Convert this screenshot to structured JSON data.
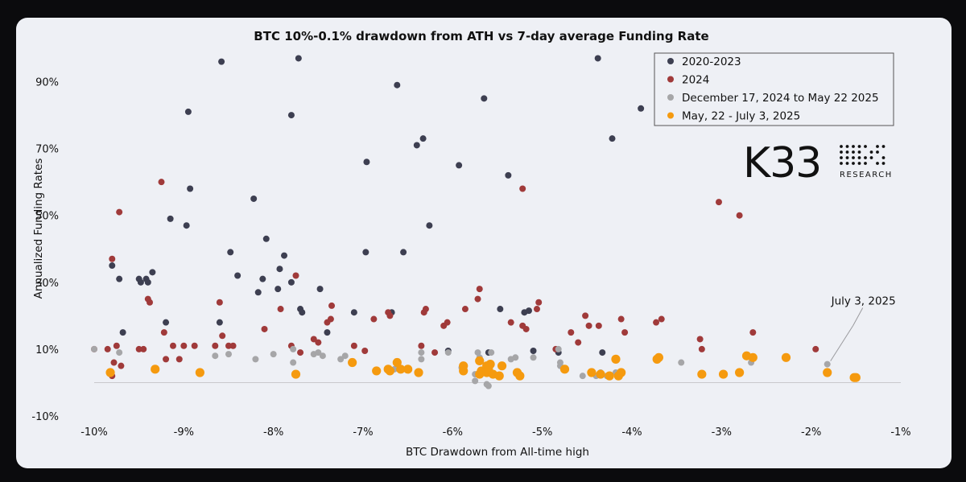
{
  "chart_data": {
    "type": "scatter",
    "title": "BTC 10%-0.1% drawdown from ATH vs 7-day average Funding Rate",
    "xlabel": "BTC Drawdown  from All-time high",
    "ylabel": "Annualized Funding Rates",
    "xlim": [
      -10,
      -1
    ],
    "ylim": [
      -10,
      100
    ],
    "xticks": [
      -10,
      -9,
      -8,
      -7,
      -6,
      -5,
      -4,
      -3,
      -2,
      -1
    ],
    "xtick_labels": [
      "-10%",
      "-9%",
      "-8%",
      "-7%",
      "-6%",
      "-5%",
      "-4%",
      "-3%",
      "-2%",
      "-1%"
    ],
    "yticks": [
      -10,
      10,
      30,
      50,
      70,
      90
    ],
    "ytick_labels": [
      "-10%",
      "10%",
      "30%",
      "50%",
      "70%",
      "90%"
    ],
    "zero_line": 0,
    "legend_position": "top-right",
    "series": [
      {
        "name": "2020-2023",
        "color": "#3d3f51",
        "points": [
          [
            -9.8,
            35
          ],
          [
            -9.72,
            31
          ],
          [
            -9.68,
            15
          ],
          [
            -9.5,
            31
          ],
          [
            -9.48,
            30
          ],
          [
            -9.42,
            31
          ],
          [
            -9.4,
            30
          ],
          [
            -9.35,
            33
          ],
          [
            -9.2,
            18
          ],
          [
            -9.15,
            49
          ],
          [
            -8.97,
            47
          ],
          [
            -8.95,
            81
          ],
          [
            -8.93,
            58
          ],
          [
            -8.6,
            18
          ],
          [
            -8.58,
            96
          ],
          [
            -8.48,
            39
          ],
          [
            -8.4,
            32
          ],
          [
            -8.22,
            55
          ],
          [
            -8.17,
            27
          ],
          [
            -8.12,
            31
          ],
          [
            -8.08,
            43
          ],
          [
            -7.95,
            28
          ],
          [
            -7.93,
            34
          ],
          [
            -7.88,
            38
          ],
          [
            -7.8,
            30
          ],
          [
            -7.8,
            80
          ],
          [
            -7.72,
            97
          ],
          [
            -7.7,
            22
          ],
          [
            -7.68,
            21
          ],
          [
            -7.48,
            28
          ],
          [
            -7.4,
            15
          ],
          [
            -7.1,
            21
          ],
          [
            -6.97,
            39
          ],
          [
            -6.96,
            66
          ],
          [
            -6.68,
            21
          ],
          [
            -6.62,
            89
          ],
          [
            -6.55,
            39
          ],
          [
            -6.4,
            71
          ],
          [
            -6.33,
            73
          ],
          [
            -6.26,
            47
          ],
          [
            -6.05,
            9.5
          ],
          [
            -5.93,
            65
          ],
          [
            -5.65,
            85
          ],
          [
            -5.6,
            9
          ],
          [
            -5.47,
            22
          ],
          [
            -5.38,
            62
          ],
          [
            -5.2,
            21
          ],
          [
            -5.15,
            21.5
          ],
          [
            -5.1,
            9.5
          ],
          [
            -4.82,
            9
          ],
          [
            -4.38,
            97
          ],
          [
            -4.33,
            9
          ],
          [
            -4.22,
            73
          ],
          [
            -3.9,
            82
          ]
        ]
      },
      {
        "name": "2024",
        "color": "#a03a3a",
        "points": [
          [
            -10,
            10
          ],
          [
            -9.85,
            10
          ],
          [
            -9.8,
            37
          ],
          [
            -9.8,
            2
          ],
          [
            -9.78,
            6
          ],
          [
            -9.75,
            11
          ],
          [
            -9.72,
            51
          ],
          [
            -9.7,
            5
          ],
          [
            -9.5,
            10
          ],
          [
            -9.45,
            10
          ],
          [
            -9.4,
            25
          ],
          [
            -9.38,
            24
          ],
          [
            -9.25,
            60
          ],
          [
            -9.22,
            15
          ],
          [
            -9.2,
            7
          ],
          [
            -9.12,
            11
          ],
          [
            -9.05,
            7
          ],
          [
            -9.0,
            11
          ],
          [
            -8.88,
            11
          ],
          [
            -8.65,
            11
          ],
          [
            -8.6,
            24
          ],
          [
            -8.57,
            14
          ],
          [
            -8.5,
            11
          ],
          [
            -8.45,
            11
          ],
          [
            -8.1,
            16
          ],
          [
            -7.92,
            22
          ],
          [
            -7.8,
            11
          ],
          [
            -7.75,
            32
          ],
          [
            -7.7,
            9
          ],
          [
            -7.55,
            13
          ],
          [
            -7.5,
            12
          ],
          [
            -7.4,
            18
          ],
          [
            -7.36,
            19
          ],
          [
            -7.35,
            23
          ],
          [
            -7.1,
            11
          ],
          [
            -6.98,
            9.5
          ],
          [
            -6.88,
            19
          ],
          [
            -6.72,
            21
          ],
          [
            -6.7,
            20
          ],
          [
            -6.35,
            11
          ],
          [
            -6.32,
            21
          ],
          [
            -6.3,
            22
          ],
          [
            -6.2,
            9
          ],
          [
            -6.1,
            17
          ],
          [
            -6.06,
            18
          ],
          [
            -5.86,
            22
          ],
          [
            -5.72,
            25
          ],
          [
            -5.7,
            28
          ],
          [
            -5.35,
            18
          ],
          [
            -5.22,
            17
          ],
          [
            -5.22,
            58
          ],
          [
            -5.18,
            16
          ],
          [
            -5.06,
            22
          ],
          [
            -5.04,
            24
          ],
          [
            -4.85,
            10
          ],
          [
            -4.68,
            15
          ],
          [
            -4.6,
            12
          ],
          [
            -4.52,
            20
          ],
          [
            -4.48,
            17
          ],
          [
            -4.37,
            17
          ],
          [
            -4.12,
            19
          ],
          [
            -4.08,
            15
          ],
          [
            -3.73,
            18
          ],
          [
            -3.67,
            19
          ],
          [
            -3.24,
            13
          ],
          [
            -3.22,
            10
          ],
          [
            -3.03,
            54
          ],
          [
            -2.8,
            50
          ],
          [
            -2.65,
            15
          ],
          [
            -1.95,
            10
          ]
        ]
      },
      {
        "name": "December 17, 2024 to May 22 2025",
        "color": "#a6a6a8",
        "points": [
          [
            -10.0,
            10
          ],
          [
            -9.72,
            9
          ],
          [
            -8.65,
            8
          ],
          [
            -8.5,
            8.5
          ],
          [
            -8.2,
            7
          ],
          [
            -8.0,
            8.5
          ],
          [
            -7.78,
            10
          ],
          [
            -7.78,
            6
          ],
          [
            -7.55,
            8.5
          ],
          [
            -7.5,
            9
          ],
          [
            -7.45,
            8
          ],
          [
            -7.25,
            7
          ],
          [
            -7.2,
            8
          ],
          [
            -6.65,
            4
          ],
          [
            -6.35,
            9
          ],
          [
            -6.35,
            7
          ],
          [
            -6.05,
            9
          ],
          [
            -5.9,
            4.5
          ],
          [
            -5.75,
            0.5
          ],
          [
            -5.75,
            2.5
          ],
          [
            -5.72,
            9
          ],
          [
            -5.7,
            7.5
          ],
          [
            -5.62,
            -0.5
          ],
          [
            -5.6,
            -1
          ],
          [
            -5.57,
            9
          ],
          [
            -5.35,
            7
          ],
          [
            -5.3,
            7.5
          ],
          [
            -5.1,
            7.5
          ],
          [
            -4.82,
            10
          ],
          [
            -4.8,
            6
          ],
          [
            -4.8,
            5
          ],
          [
            -4.55,
            2
          ],
          [
            -4.4,
            2
          ],
          [
            -4.35,
            3
          ],
          [
            -4.28,
            2
          ],
          [
            -4.18,
            3
          ],
          [
            -3.45,
            6
          ],
          [
            -2.67,
            6
          ],
          [
            -1.82,
            5.5
          ]
        ]
      },
      {
        "name": "May, 22 - July 3, 2025",
        "color": "#f59a0f",
        "points": [
          [
            -9.82,
            3
          ],
          [
            -9.32,
            4
          ],
          [
            -8.82,
            3
          ],
          [
            -7.75,
            2.5
          ],
          [
            -7.12,
            6
          ],
          [
            -6.85,
            3.5
          ],
          [
            -6.72,
            4
          ],
          [
            -6.7,
            3.5
          ],
          [
            -6.62,
            6
          ],
          [
            -6.58,
            4
          ],
          [
            -6.5,
            4
          ],
          [
            -6.38,
            3
          ],
          [
            -5.88,
            3.5
          ],
          [
            -5.88,
            5
          ],
          [
            -5.7,
            6.5
          ],
          [
            -5.7,
            2.5
          ],
          [
            -5.68,
            3.5
          ],
          [
            -5.62,
            3
          ],
          [
            -5.62,
            5
          ],
          [
            -5.6,
            4
          ],
          [
            -5.58,
            5.5
          ],
          [
            -5.55,
            2.5
          ],
          [
            -5.48,
            2
          ],
          [
            -5.45,
            5
          ],
          [
            -5.28,
            3
          ],
          [
            -5.25,
            2
          ],
          [
            -4.75,
            4
          ],
          [
            -4.45,
            3
          ],
          [
            -4.35,
            2.5
          ],
          [
            -4.25,
            2
          ],
          [
            -4.18,
            7
          ],
          [
            -4.15,
            2
          ],
          [
            -4.12,
            3
          ],
          [
            -3.72,
            7
          ],
          [
            -3.7,
            7.5
          ],
          [
            -3.22,
            2.5
          ],
          [
            -2.98,
            2.5
          ],
          [
            -2.8,
            3
          ],
          [
            -2.72,
            8
          ],
          [
            -2.65,
            7.5
          ],
          [
            -2.28,
            7.5
          ],
          [
            -1.82,
            3
          ],
          [
            -1.52,
            1.5
          ],
          [
            -1.5,
            1.5
          ]
        ]
      }
    ],
    "annotation": {
      "text": "July 3, 2025",
      "x": -1.82,
      "y": 5.5
    }
  },
  "logo": {
    "name": "K33",
    "sub": "RESEARCH"
  }
}
